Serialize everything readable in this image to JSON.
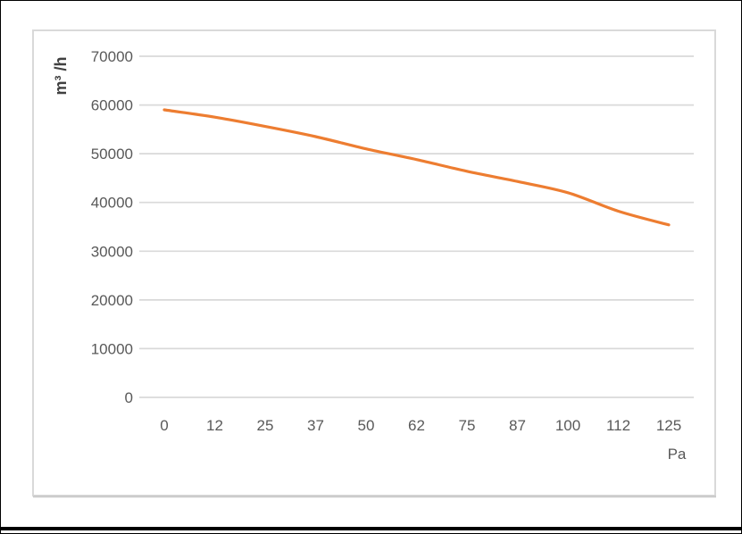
{
  "chart_data": {
    "type": "line",
    "title": "",
    "xlabel": "Pa",
    "ylabel": "m³ /h",
    "categories": [
      0,
      12.5,
      25,
      37.5,
      50,
      62.5,
      75,
      87.5,
      100,
      112.5,
      125
    ],
    "x_tick_labels": [
      "0",
      "12",
      "25",
      "37",
      "50",
      "62",
      "75",
      "87",
      "100",
      "112",
      "125"
    ],
    "y_ticks": [
      0,
      10000,
      20000,
      30000,
      40000,
      50000,
      60000,
      70000
    ],
    "y_tick_labels": [
      "0",
      "10000",
      "20000",
      "30000",
      "40000",
      "50000",
      "60000",
      "70000"
    ],
    "series": [
      {
        "name": "",
        "values": [
          59000,
          57500,
          55600,
          53500,
          51000,
          48800,
          46400,
          44300,
          42000,
          38200,
          35400
        ]
      }
    ],
    "ylim": [
      0,
      70000
    ],
    "xlim": [
      0,
      125
    ],
    "grid": true,
    "legend": false,
    "line_color": "#ED7D31",
    "grid_color": "#D9D9D9",
    "tick_color": "#595959",
    "axis_title_color": "#404040",
    "chart_border_color": "#D9D9D9",
    "page_rule_color": "#000000"
  }
}
